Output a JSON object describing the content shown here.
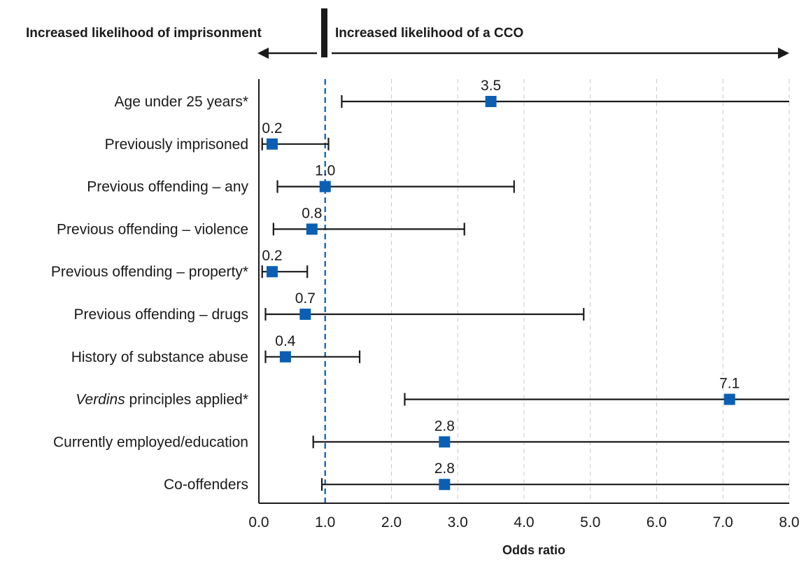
{
  "chart_data": {
    "type": "forest",
    "header_left": "Increased likelihood of imprisonment",
    "header_right": "Increased likelihood of a CCO",
    "xlabel": "Odds ratio",
    "xlim": [
      0,
      8
    ],
    "x_ticks": [
      "0.0",
      "1.0",
      "2.0",
      "3.0",
      "4.0",
      "5.0",
      "6.0",
      "7.0",
      "8.0"
    ],
    "reference_line": 1.0,
    "grid": "vertical dashed",
    "marker_color": "#0a5fb4",
    "reference_color": "#1a6fc0",
    "rows": [
      {
        "label": "Age under 25 years*",
        "value": 3.5,
        "value_label": "3.5",
        "ci_low": 1.25,
        "ci_high": 8.0,
        "open_upper": true
      },
      {
        "label": "Previously imprisoned",
        "value": 0.2,
        "value_label": "0.2",
        "ci_low": 0.05,
        "ci_high": 1.05
      },
      {
        "label": "Previous offending – any",
        "value": 1.0,
        "value_label": "1.0",
        "ci_low": 0.28,
        "ci_high": 3.85
      },
      {
        "label": "Previous offending – violence",
        "value": 0.8,
        "value_label": "0.8",
        "ci_low": 0.22,
        "ci_high": 3.1
      },
      {
        "label": "Previous offending – property*",
        "value": 0.2,
        "value_label": "0.2",
        "ci_low": 0.05,
        "ci_high": 0.73
      },
      {
        "label": "Previous offending – drugs",
        "value": 0.7,
        "value_label": "0.7",
        "ci_low": 0.1,
        "ci_high": 4.9
      },
      {
        "label": "History of substance abuse",
        "value": 0.4,
        "value_label": "0.4",
        "ci_low": 0.1,
        "ci_high": 1.52
      },
      {
        "label_italic": "Verdins",
        "label": " principles applied*",
        "value": 7.1,
        "value_label": "7.1",
        "ci_low": 2.2,
        "ci_high": 8.0,
        "open_upper": true
      },
      {
        "label": "Currently employed/education",
        "value": 2.8,
        "value_label": "2.8",
        "ci_low": 0.82,
        "ci_high": 8.0,
        "open_upper": true
      },
      {
        "label": "Co-offenders",
        "value": 2.8,
        "value_label": "2.8",
        "ci_low": 0.95,
        "ci_high": 8.0,
        "open_upper": true
      }
    ]
  }
}
